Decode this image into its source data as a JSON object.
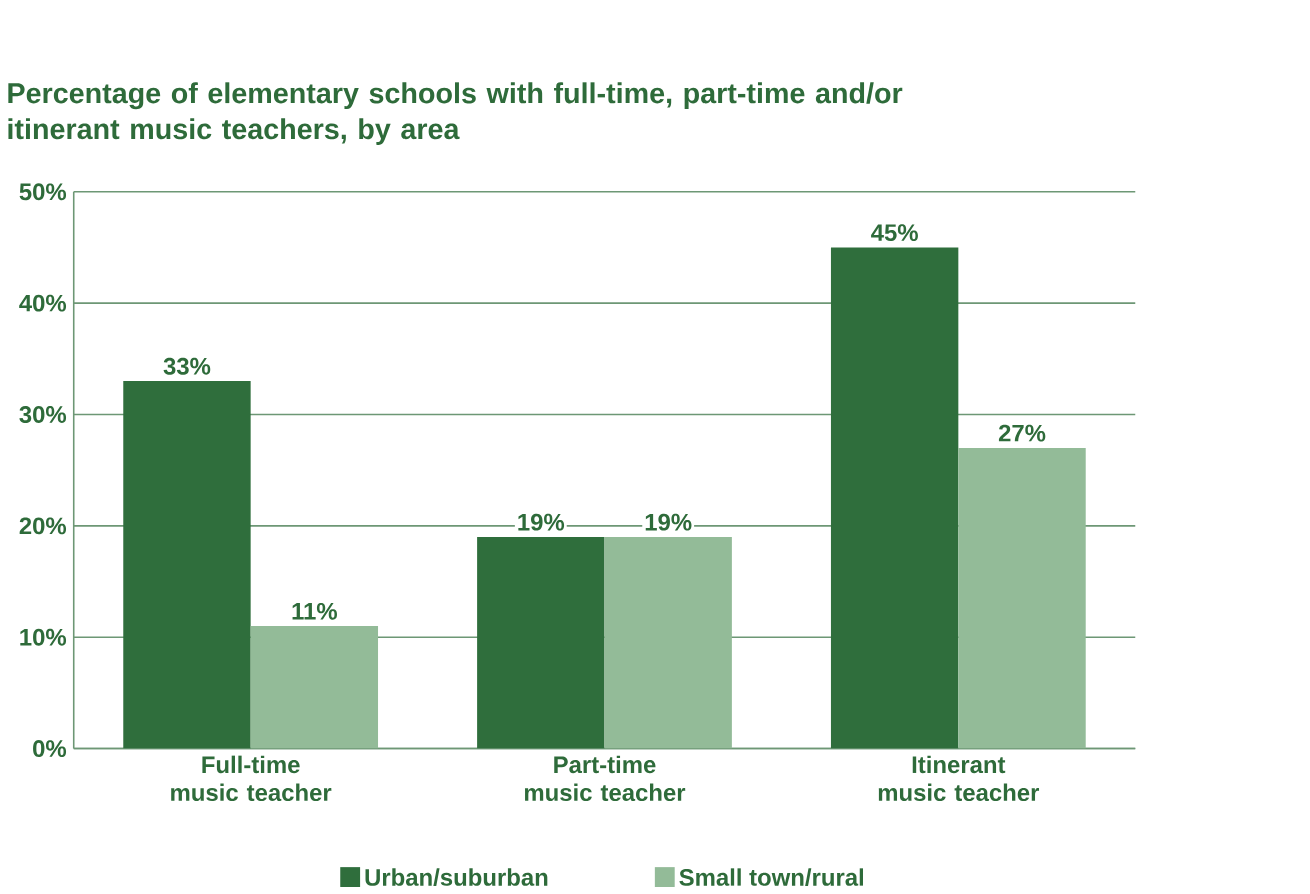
{
  "chart_data": {
    "type": "bar",
    "title": "Percentage of elementary schools with full-time, part-time and/or itinerant music teachers, by area",
    "categories": [
      "Full-time music teacher",
      "Part-time music teacher",
      "Itinerant music teacher"
    ],
    "series": [
      {
        "name": "Urban/suburban",
        "color": "#2f6e3c",
        "values": [
          33,
          19,
          45
        ],
        "value_labels": [
          "33%",
          "19%",
          "45%"
        ]
      },
      {
        "name": "Small town/rural",
        "color": "#93bb98",
        "values": [
          11,
          19,
          27
        ],
        "value_labels": [
          "11%",
          "19%",
          "27%"
        ]
      }
    ],
    "ylim": [
      0,
      50
    ],
    "yticks": [
      {
        "value": 0,
        "label": "0%"
      },
      {
        "value": 10,
        "label": "10%"
      },
      {
        "value": 20,
        "label": "20%"
      },
      {
        "value": 30,
        "label": "30%"
      },
      {
        "value": 40,
        "label": "40%"
      },
      {
        "value": 50,
        "label": "50%"
      }
    ],
    "grid": "y",
    "legend": "bottom"
  }
}
